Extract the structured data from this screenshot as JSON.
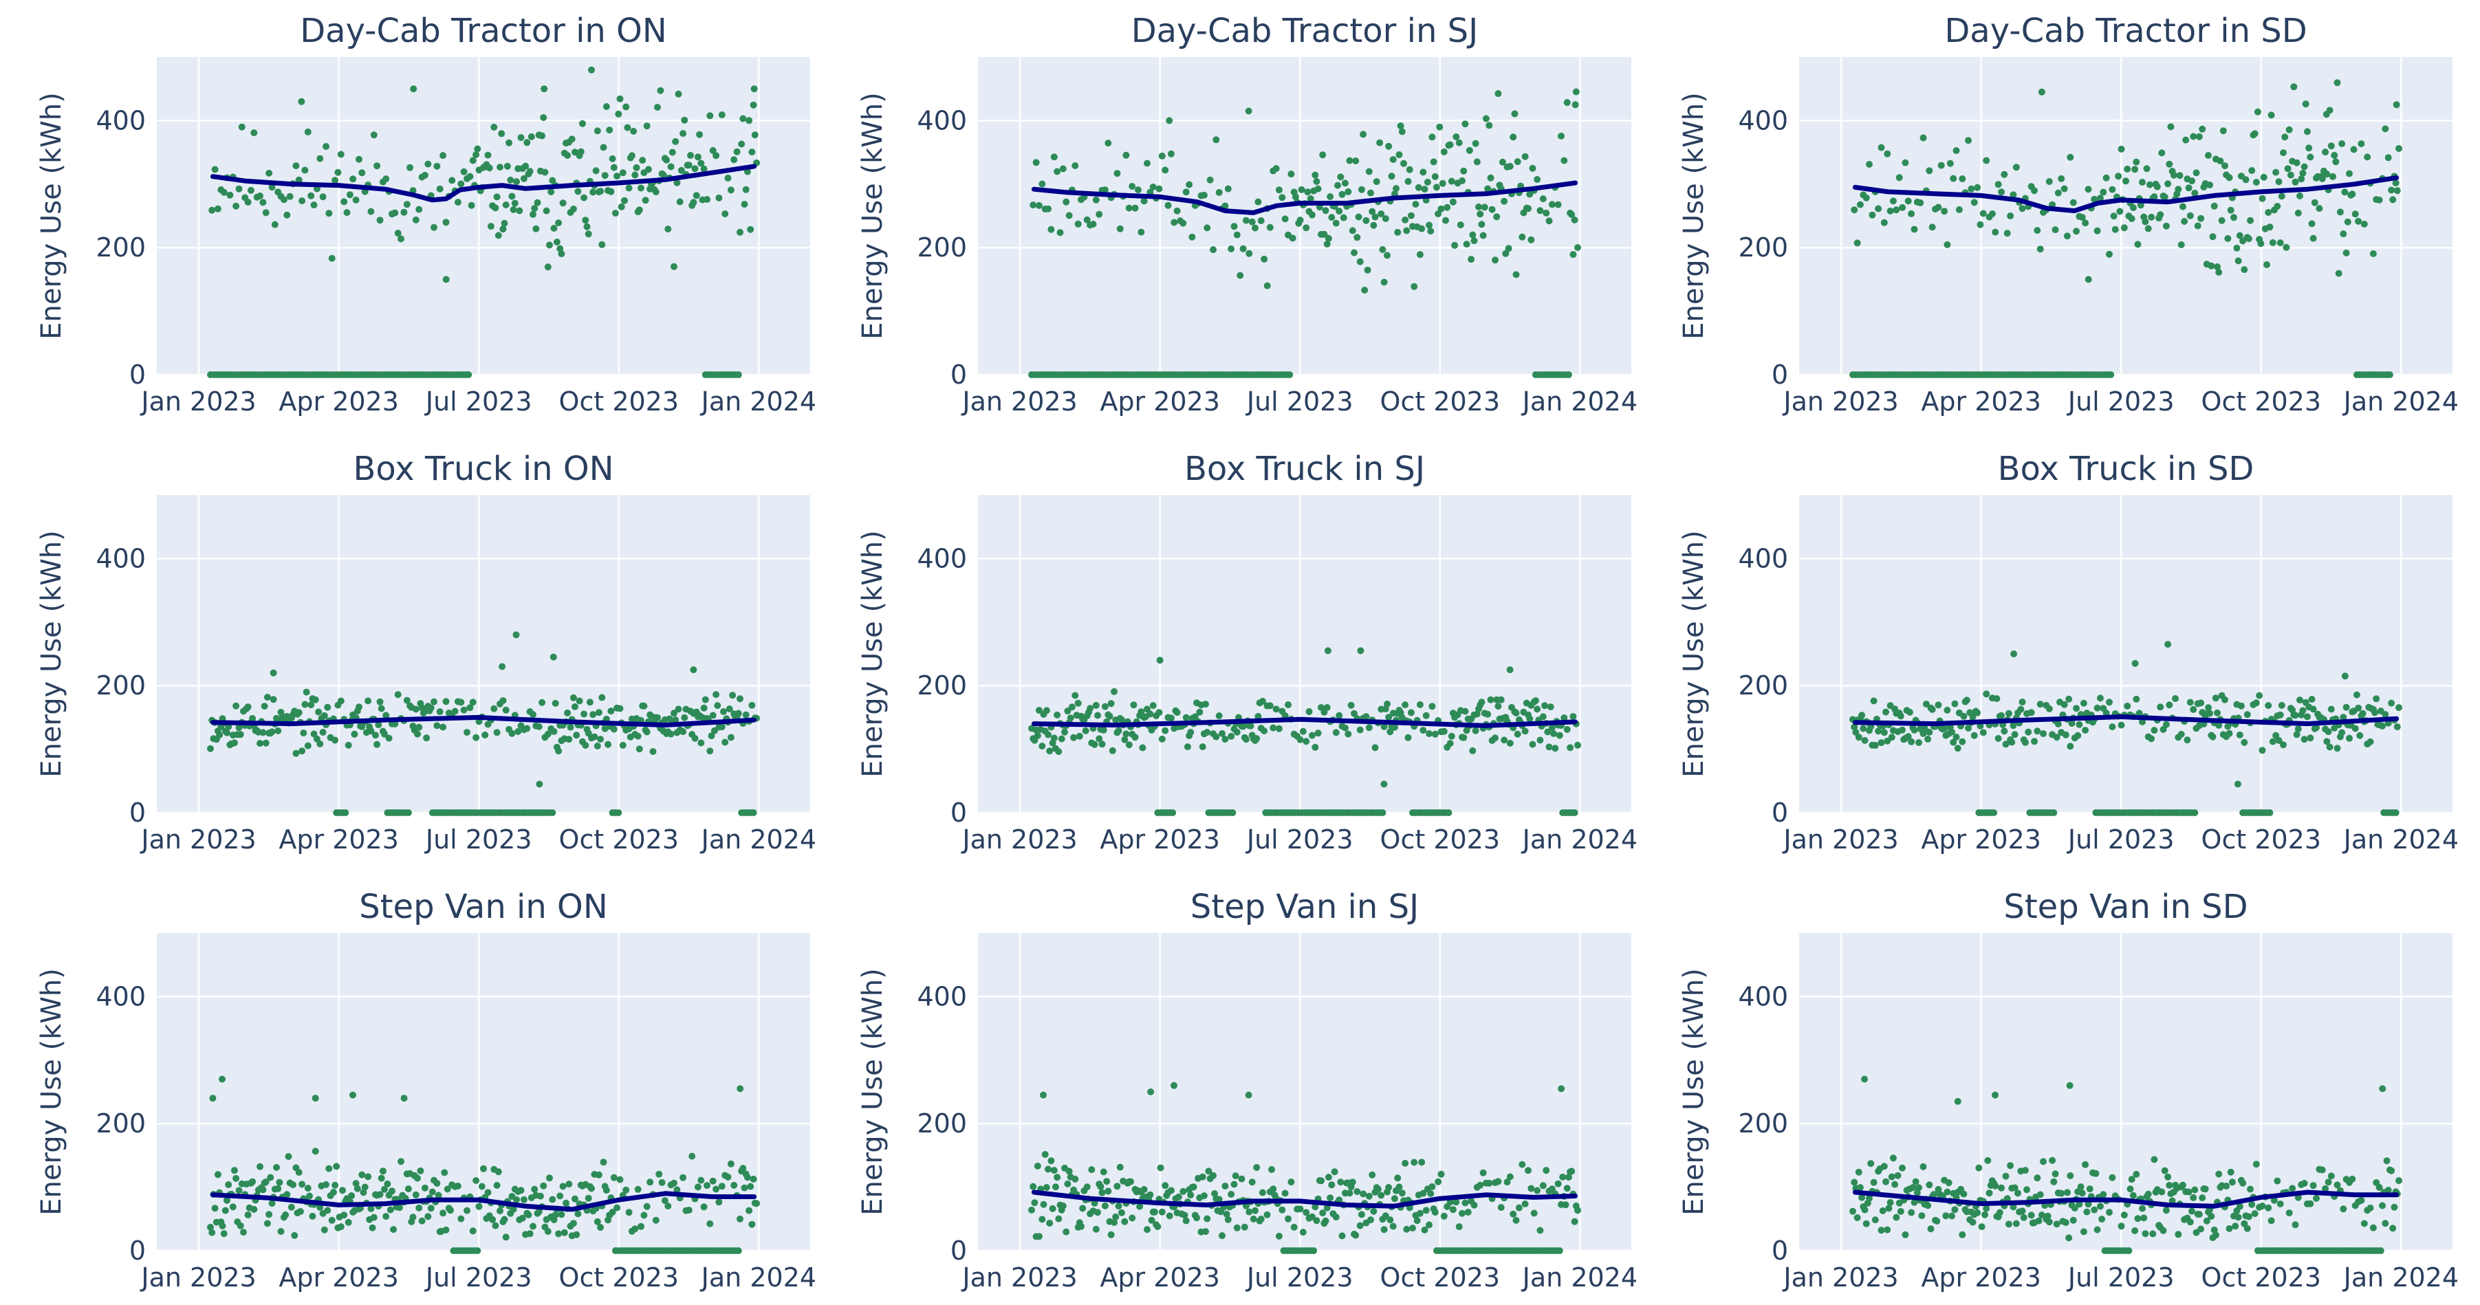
{
  "figure": {
    "trend_color": "#00008b",
    "point_color": "#2e8b57",
    "plot_bg": "#e5ecf6"
  },
  "chart_data": [
    {
      "type": "scatter",
      "title": "Day-Cab Tractor in ON",
      "ylabel": "Energy Use (kWh)",
      "ylim": [
        0,
        500
      ],
      "yticks": [
        {
          "v": 0,
          "label": "0"
        },
        {
          "v": 200,
          "label": "200"
        },
        {
          "v": 400,
          "label": "400"
        }
      ],
      "xticks": [
        {
          "m": 0,
          "label": "Jan 2023"
        },
        {
          "m": 3,
          "label": "Apr 2023"
        },
        {
          "m": 6,
          "label": "Jul 2023"
        },
        {
          "m": 9,
          "label": "Oct 2023"
        },
        {
          "m": 12,
          "label": "Jan 2024"
        }
      ],
      "trend": [
        [
          0.3,
          312
        ],
        [
          1,
          305
        ],
        [
          2,
          300
        ],
        [
          3,
          298
        ],
        [
          4,
          292
        ],
        [
          4.6,
          283
        ],
        [
          5,
          275
        ],
        [
          5.3,
          277
        ],
        [
          5.6,
          291
        ],
        [
          6,
          295
        ],
        [
          6.5,
          298
        ],
        [
          7,
          293
        ],
        [
          8,
          298
        ],
        [
          9,
          302
        ],
        [
          10,
          307
        ],
        [
          11,
          318
        ],
        [
          11.9,
          328
        ]
      ],
      "level": 300,
      "spread": 60,
      "spread_shift": {
        "from": 7,
        "extra": 30
      },
      "zeros": [
        [
          0.2,
          5.8
        ],
        [
          10.8,
          11.6
        ]
      ],
      "outliers": [
        [
          2.2,
          430
        ],
        [
          4.6,
          450
        ],
        [
          7.4,
          450
        ],
        [
          5.3,
          150
        ],
        [
          11.9,
          450
        ]
      ],
      "seed": 11
    },
    {
      "type": "scatter",
      "title": "Day-Cab Tractor in SJ",
      "ylabel": "Energy Use (kWh)",
      "ylim": [
        0,
        500
      ],
      "yticks": [
        {
          "v": 0,
          "label": "0"
        },
        {
          "v": 200,
          "label": "200"
        },
        {
          "v": 400,
          "label": "400"
        }
      ],
      "xticks": [
        {
          "m": 0,
          "label": "Jan 2023"
        },
        {
          "m": 3,
          "label": "Apr 2023"
        },
        {
          "m": 6,
          "label": "Jul 2023"
        },
        {
          "m": 9,
          "label": "Oct 2023"
        },
        {
          "m": 12,
          "label": "Jan 2024"
        }
      ],
      "trend": [
        [
          0.3,
          292
        ],
        [
          1,
          287
        ],
        [
          2,
          283
        ],
        [
          3,
          280
        ],
        [
          3.8,
          272
        ],
        [
          4.4,
          258
        ],
        [
          5,
          255
        ],
        [
          5.5,
          266
        ],
        [
          6,
          270
        ],
        [
          7,
          270
        ],
        [
          8,
          278
        ],
        [
          9,
          282
        ],
        [
          10,
          285
        ],
        [
          11,
          293
        ],
        [
          11.9,
          302
        ]
      ],
      "level": 270,
      "spread": 55,
      "spread_shift": {
        "from": 7,
        "extra": 35
      },
      "zeros": [
        [
          0.2,
          5.8
        ],
        [
          11.0,
          11.8
        ]
      ],
      "outliers": [
        [
          3.2,
          400
        ],
        [
          4.9,
          415
        ],
        [
          5.3,
          140
        ],
        [
          11.9,
          425
        ]
      ],
      "seed": 23
    },
    {
      "type": "scatter",
      "title": "Day-Cab Tractor in SD",
      "ylabel": "Energy Use (kWh)",
      "ylim": [
        0,
        500
      ],
      "yticks": [
        {
          "v": 0,
          "label": "0"
        },
        {
          "v": 200,
          "label": "200"
        },
        {
          "v": 400,
          "label": "400"
        }
      ],
      "xticks": [
        {
          "m": 0,
          "label": "Jan 2023"
        },
        {
          "m": 3,
          "label": "Apr 2023"
        },
        {
          "m": 6,
          "label": "Jul 2023"
        },
        {
          "m": 9,
          "label": "Oct 2023"
        },
        {
          "m": 12,
          "label": "Jan 2024"
        }
      ],
      "trend": [
        [
          0.3,
          295
        ],
        [
          1,
          288
        ],
        [
          2,
          285
        ],
        [
          3,
          282
        ],
        [
          3.8,
          275
        ],
        [
          4.4,
          262
        ],
        [
          5,
          258
        ],
        [
          5.5,
          270
        ],
        [
          6,
          275
        ],
        [
          7,
          272
        ],
        [
          8,
          282
        ],
        [
          9,
          288
        ],
        [
          10,
          292
        ],
        [
          11,
          300
        ],
        [
          11.9,
          310
        ]
      ],
      "level": 275,
      "spread": 55,
      "spread_shift": {
        "from": 7,
        "extra": 35
      },
      "zeros": [
        [
          0.2,
          5.8
        ],
        [
          11.0,
          11.8
        ]
      ],
      "outliers": [
        [
          4.3,
          445
        ],
        [
          5.3,
          150
        ],
        [
          10.4,
          410
        ],
        [
          11.9,
          425
        ]
      ],
      "seed": 37
    },
    {
      "type": "scatter",
      "title": "Box Truck in ON",
      "ylabel": "Energy Use (kWh)",
      "ylim": [
        0,
        500
      ],
      "yticks": [
        {
          "v": 0,
          "label": "0"
        },
        {
          "v": 200,
          "label": "200"
        },
        {
          "v": 400,
          "label": "400"
        }
      ],
      "xticks": [
        {
          "m": 0,
          "label": "Jan 2023"
        },
        {
          "m": 3,
          "label": "Apr 2023"
        },
        {
          "m": 6,
          "label": "Jul 2023"
        },
        {
          "m": 9,
          "label": "Oct 2023"
        },
        {
          "m": 12,
          "label": "Jan 2024"
        }
      ],
      "trend": [
        [
          0.3,
          142
        ],
        [
          2,
          140
        ],
        [
          4,
          146
        ],
        [
          6,
          150
        ],
        [
          8,
          143
        ],
        [
          10,
          138
        ],
        [
          11.9,
          146
        ]
      ],
      "level": 140,
      "spread": 28,
      "zeros": [
        [
          2.9,
          3.2
        ],
        [
          4.0,
          4.5
        ],
        [
          5.0,
          7.6
        ],
        [
          8.8,
          9.0
        ],
        [
          11.6,
          11.9
        ]
      ],
      "outliers": [
        [
          6.8,
          280
        ],
        [
          6.5,
          230
        ],
        [
          7.6,
          245
        ],
        [
          1.6,
          220
        ],
        [
          10.6,
          225
        ],
        [
          7.3,
          45
        ]
      ],
      "seed": 53
    },
    {
      "type": "scatter",
      "title": "Box Truck in SJ",
      "ylabel": "Energy Use (kWh)",
      "ylim": [
        0,
        500
      ],
      "yticks": [
        {
          "v": 0,
          "label": "0"
        },
        {
          "v": 200,
          "label": "200"
        },
        {
          "v": 400,
          "label": "400"
        }
      ],
      "xticks": [
        {
          "m": 0,
          "label": "Jan 2023"
        },
        {
          "m": 3,
          "label": "Apr 2023"
        },
        {
          "m": 6,
          "label": "Jul 2023"
        },
        {
          "m": 9,
          "label": "Oct 2023"
        },
        {
          "m": 12,
          "label": "Jan 2024"
        }
      ],
      "trend": [
        [
          0.3,
          140
        ],
        [
          2,
          138
        ],
        [
          4,
          142
        ],
        [
          6,
          147
        ],
        [
          8,
          142
        ],
        [
          10,
          137
        ],
        [
          11.9,
          143
        ]
      ],
      "level": 138,
      "spread": 28,
      "zeros": [
        [
          2.9,
          3.3
        ],
        [
          4.0,
          4.6
        ],
        [
          5.2,
          7.8
        ],
        [
          8.4,
          9.2
        ],
        [
          11.6,
          11.9
        ]
      ],
      "outliers": [
        [
          6.6,
          255
        ],
        [
          7.3,
          255
        ],
        [
          3.0,
          240
        ],
        [
          10.5,
          225
        ],
        [
          7.8,
          45
        ]
      ],
      "seed": 67
    },
    {
      "type": "scatter",
      "title": "Box Truck in SD",
      "ylabel": "Energy Use (kWh)",
      "ylim": [
        0,
        500
      ],
      "yticks": [
        {
          "v": 0,
          "label": "0"
        },
        {
          "v": 200,
          "label": "200"
        },
        {
          "v": 400,
          "label": "400"
        }
      ],
      "xticks": [
        {
          "m": 0,
          "label": "Jan 2023"
        },
        {
          "m": 3,
          "label": "Apr 2023"
        },
        {
          "m": 6,
          "label": "Jul 2023"
        },
        {
          "m": 9,
          "label": "Oct 2023"
        },
        {
          "m": 12,
          "label": "Jan 2024"
        }
      ],
      "trend": [
        [
          0.3,
          142
        ],
        [
          2,
          140
        ],
        [
          4,
          146
        ],
        [
          6,
          151
        ],
        [
          8,
          145
        ],
        [
          10,
          140
        ],
        [
          11.9,
          148
        ]
      ],
      "level": 142,
      "spread": 28,
      "zeros": [
        [
          2.9,
          3.3
        ],
        [
          4.0,
          4.6
        ],
        [
          5.4,
          7.6
        ],
        [
          8.6,
          9.2
        ],
        [
          11.6,
          11.9
        ]
      ],
      "outliers": [
        [
          7.0,
          265
        ],
        [
          6.3,
          235
        ],
        [
          3.7,
          250
        ],
        [
          10.8,
          215
        ],
        [
          8.5,
          45
        ]
      ],
      "seed": 79
    },
    {
      "type": "scatter",
      "title": "Step Van in ON",
      "ylabel": "Energy Use (kWh)",
      "ylim": [
        0,
        500
      ],
      "yticks": [
        {
          "v": 0,
          "label": "0"
        },
        {
          "v": 200,
          "label": "200"
        },
        {
          "v": 400,
          "label": "400"
        }
      ],
      "xticks": [
        {
          "m": 0,
          "label": "Jan 2023"
        },
        {
          "m": 3,
          "label": "Apr 2023"
        },
        {
          "m": 6,
          "label": "Jul 2023"
        },
        {
          "m": 9,
          "label": "Oct 2023"
        },
        {
          "m": 12,
          "label": "Jan 2024"
        }
      ],
      "trend": [
        [
          0.3,
          88
        ],
        [
          1.5,
          83
        ],
        [
          3,
          72
        ],
        [
          4,
          74
        ],
        [
          5,
          80
        ],
        [
          6,
          80
        ],
        [
          7,
          70
        ],
        [
          8,
          65
        ],
        [
          9,
          80
        ],
        [
          10,
          90
        ],
        [
          11,
          85
        ],
        [
          11.9,
          85
        ]
      ],
      "level": 80,
      "spread": 40,
      "zeros": [
        [
          5.4,
          6.0
        ],
        [
          8.9,
          11.6
        ]
      ],
      "outliers": [
        [
          0.5,
          270
        ],
        [
          3.3,
          245
        ],
        [
          4.4,
          240
        ],
        [
          11.6,
          255
        ],
        [
          0.3,
          240
        ],
        [
          2.5,
          240
        ]
      ],
      "seed": 97
    },
    {
      "type": "scatter",
      "title": "Step Van in SJ",
      "ylabel": "Energy Use (kWh)",
      "ylim": [
        0,
        500
      ],
      "yticks": [
        {
          "v": 0,
          "label": "0"
        },
        {
          "v": 200,
          "label": "200"
        },
        {
          "v": 400,
          "label": "400"
        }
      ],
      "xticks": [
        {
          "m": 0,
          "label": "Jan 2023"
        },
        {
          "m": 3,
          "label": "Apr 2023"
        },
        {
          "m": 6,
          "label": "Jul 2023"
        },
        {
          "m": 9,
          "label": "Oct 2023"
        },
        {
          "m": 12,
          "label": "Jan 2024"
        }
      ],
      "trend": [
        [
          0.3,
          92
        ],
        [
          1.5,
          82
        ],
        [
          3,
          75
        ],
        [
          4,
          72
        ],
        [
          5,
          78
        ],
        [
          6,
          78
        ],
        [
          7,
          72
        ],
        [
          8,
          70
        ],
        [
          9,
          82
        ],
        [
          10,
          88
        ],
        [
          11,
          84
        ],
        [
          11.9,
          86
        ]
      ],
      "level": 80,
      "spread": 40,
      "zeros": [
        [
          5.6,
          6.3
        ],
        [
          8.9,
          11.6
        ]
      ],
      "outliers": [
        [
          0.5,
          245
        ],
        [
          3.3,
          260
        ],
        [
          4.9,
          245
        ],
        [
          11.6,
          255
        ],
        [
          2.8,
          250
        ]
      ],
      "seed": 113
    },
    {
      "type": "scatter",
      "title": "Step Van in SD",
      "ylabel": "Energy Use (kWh)",
      "ylim": [
        0,
        500
      ],
      "yticks": [
        {
          "v": 0,
          "label": "0"
        },
        {
          "v": 200,
          "label": "200"
        },
        {
          "v": 400,
          "label": "400"
        }
      ],
      "xticks": [
        {
          "m": 0,
          "label": "Jan 2023"
        },
        {
          "m": 3,
          "label": "Apr 2023"
        },
        {
          "m": 6,
          "label": "Jul 2023"
        },
        {
          "m": 9,
          "label": "Oct 2023"
        },
        {
          "m": 12,
          "label": "Jan 2024"
        }
      ],
      "trend": [
        [
          0.3,
          92
        ],
        [
          1.5,
          84
        ],
        [
          3,
          74
        ],
        [
          4,
          76
        ],
        [
          5,
          80
        ],
        [
          6,
          80
        ],
        [
          7,
          72
        ],
        [
          8,
          70
        ],
        [
          9,
          84
        ],
        [
          10,
          92
        ],
        [
          11,
          88
        ],
        [
          11.9,
          88
        ]
      ],
      "level": 82,
      "spread": 40,
      "zeros": [
        [
          5.6,
          6.2
        ],
        [
          8.9,
          11.6
        ]
      ],
      "outliers": [
        [
          0.5,
          270
        ],
        [
          3.3,
          245
        ],
        [
          4.9,
          260
        ],
        [
          11.6,
          255
        ],
        [
          2.5,
          235
        ]
      ],
      "seed": 131
    }
  ]
}
